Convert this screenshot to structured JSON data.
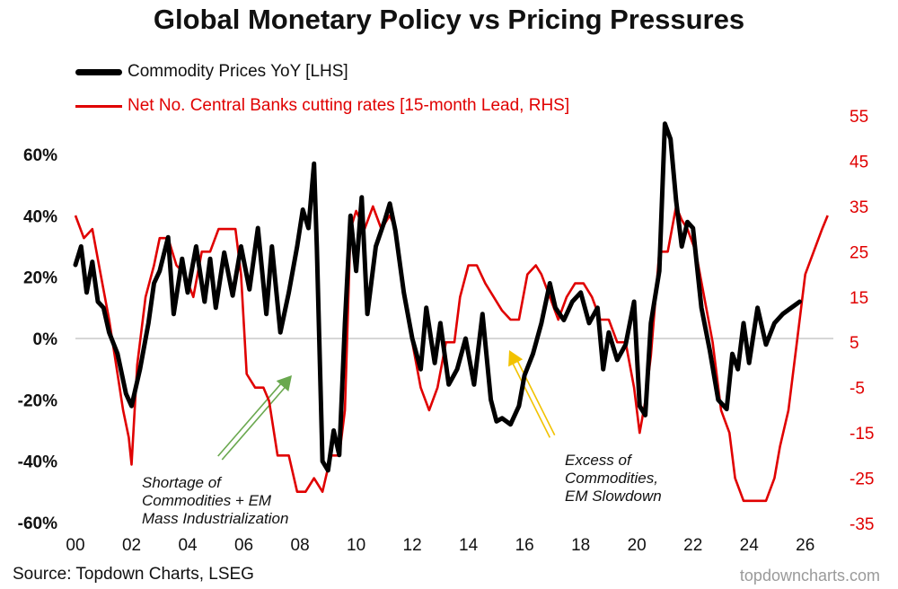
{
  "title": "Global Monetary Policy vs Pricing Pressures",
  "legend": {
    "black_label": "Commodity Prices YoY [LHS]",
    "red_label": "Net No. Central Banks cutting rates [15-month Lead, RHS]"
  },
  "source": "Source: Topdown Charts, LSEG",
  "watermark": "topdowncharts.com",
  "annotations": {
    "left_lines": [
      "Shortage of",
      "Commodities + EM",
      "Mass Industrialization"
    ],
    "right_lines": [
      "Excess of",
      "Commodities,",
      "EM Slowdown"
    ]
  },
  "colors": {
    "commodity": "#000000",
    "central_banks": "#e00000",
    "arrow_green": "#6aa84f",
    "arrow_yellow": "#f2c200",
    "zero_line": "#c8c8c8"
  },
  "chart_data": {
    "type": "line",
    "title": "Global Monetary Policy vs Pricing Pressures",
    "x_ticks": [
      "00",
      "02",
      "04",
      "06",
      "08",
      "10",
      "12",
      "14",
      "16",
      "18",
      "20",
      "22",
      "24",
      "26"
    ],
    "xlim": [
      2000,
      2027
    ],
    "y_left": {
      "ticks": [
        "60%",
        "40%",
        "20%",
        "0%",
        "-20%",
        "-40%",
        "-60%"
      ],
      "lim": [
        -60,
        60
      ]
    },
    "y_right": {
      "ticks": [
        "55",
        "45",
        "35",
        "25",
        "15",
        "5",
        "-5",
        "-15",
        "-25",
        "-35"
      ],
      "lim": [
        -35,
        55
      ]
    },
    "legend_position": "top-left",
    "series": [
      {
        "name": "Commodity Prices YoY [LHS]",
        "axis": "left",
        "x": [
          2000.0,
          2000.2,
          2000.4,
          2000.6,
          2000.8,
          2001.0,
          2001.2,
          2001.5,
          2001.8,
          2002.0,
          2002.3,
          2002.6,
          2002.8,
          2003.0,
          2003.3,
          2003.5,
          2003.8,
          2004.0,
          2004.3,
          2004.6,
          2004.8,
          2005.0,
          2005.3,
          2005.6,
          2005.9,
          2006.2,
          2006.5,
          2006.8,
          2007.0,
          2007.3,
          2007.6,
          2007.9,
          2008.1,
          2008.3,
          2008.5,
          2008.6,
          2008.8,
          2009.0,
          2009.2,
          2009.4,
          2009.6,
          2009.8,
          2010.0,
          2010.2,
          2010.4,
          2010.7,
          2011.0,
          2011.2,
          2011.4,
          2011.7,
          2012.0,
          2012.3,
          2012.5,
          2012.8,
          2013.0,
          2013.3,
          2013.6,
          2013.9,
          2014.2,
          2014.5,
          2014.8,
          2015.0,
          2015.2,
          2015.5,
          2015.8,
          2016.0,
          2016.3,
          2016.6,
          2016.9,
          2017.1,
          2017.4,
          2017.7,
          2018.0,
          2018.3,
          2018.6,
          2018.8,
          2019.0,
          2019.3,
          2019.6,
          2019.9,
          2020.1,
          2020.3,
          2020.5,
          2020.8,
          2021.0,
          2021.2,
          2021.4,
          2021.6,
          2021.8,
          2022.0,
          2022.3,
          2022.6,
          2022.9,
          2023.2,
          2023.4,
          2023.6,
          2023.8,
          2024.0,
          2024.3,
          2024.6,
          2024.9,
          2025.2,
          2025.5,
          2025.8
        ],
        "y": [
          24,
          30,
          15,
          25,
          12,
          10,
          2,
          -5,
          -18,
          -22,
          -10,
          5,
          18,
          22,
          33,
          8,
          26,
          15,
          30,
          12,
          26,
          10,
          28,
          14,
          30,
          16,
          36,
          8,
          30,
          2,
          15,
          30,
          42,
          36,
          57,
          30,
          -40,
          -43,
          -30,
          -38,
          5,
          40,
          22,
          46,
          8,
          30,
          38,
          44,
          35,
          15,
          0,
          -10,
          10,
          -8,
          5,
          -15,
          -10,
          0,
          -15,
          8,
          -20,
          -27,
          -26,
          -28,
          -22,
          -12,
          -5,
          5,
          18,
          10,
          6,
          12,
          15,
          5,
          10,
          -10,
          2,
          -7,
          -2,
          12,
          -22,
          -25,
          5,
          22,
          70,
          65,
          45,
          30,
          38,
          36,
          10,
          -4,
          -20,
          -23,
          -5,
          -10,
          5,
          -8,
          10,
          -2,
          5,
          8,
          10,
          12
        ]
      },
      {
        "name": "Net No. Central Banks cutting rates [15-month Lead, RHS]",
        "axis": "right",
        "x": [
          2000.0,
          2000.3,
          2000.6,
          2000.9,
          2001.2,
          2001.5,
          2001.7,
          2001.9,
          2002.0,
          2002.2,
          2002.5,
          2002.8,
          2003.0,
          2003.3,
          2003.6,
          2003.9,
          2004.2,
          2004.5,
          2004.8,
          2005.1,
          2005.4,
          2005.7,
          2005.9,
          2006.1,
          2006.4,
          2006.7,
          2006.9,
          2007.2,
          2007.6,
          2007.9,
          2008.2,
          2008.5,
          2008.8,
          2009.1,
          2009.4,
          2009.6,
          2009.8,
          2010.0,
          2010.3,
          2010.6,
          2010.9,
          2011.2,
          2011.4,
          2011.7,
          2012.0,
          2012.3,
          2012.6,
          2012.9,
          2013.2,
          2013.5,
          2013.7,
          2014.0,
          2014.3,
          2014.6,
          2014.9,
          2015.2,
          2015.5,
          2015.8,
          2016.1,
          2016.4,
          2016.6,
          2016.9,
          2017.2,
          2017.5,
          2017.8,
          2018.1,
          2018.4,
          2018.7,
          2019.0,
          2019.3,
          2019.6,
          2019.9,
          2020.1,
          2020.3,
          2020.5,
          2020.8,
          2021.1,
          2021.4,
          2021.6,
          2021.8,
          2022.1,
          2022.4,
          2022.7,
          2023.0,
          2023.3,
          2023.5,
          2023.8,
          2024.2,
          2024.6,
          2024.9,
          2025.1,
          2025.4,
          2025.7,
          2026.0,
          2026.3,
          2026.6,
          2026.8
        ],
        "y": [
          33,
          28,
          30,
          20,
          10,
          -2,
          -10,
          -16,
          -22,
          0,
          15,
          22,
          28,
          28,
          22,
          20,
          15,
          25,
          25,
          30,
          30,
          30,
          20,
          -2,
          -5,
          -5,
          -8,
          -20,
          -20,
          -28,
          -28,
          -25,
          -28,
          -20,
          -20,
          -10,
          30,
          34,
          30,
          35,
          30,
          33,
          30,
          15,
          5,
          -5,
          -10,
          -5,
          5,
          5,
          15,
          22,
          22,
          18,
          15,
          12,
          10,
          10,
          20,
          22,
          20,
          15,
          10,
          15,
          18,
          18,
          15,
          10,
          10,
          5,
          5,
          -5,
          -15,
          -8,
          2,
          25,
          25,
          35,
          32,
          30,
          25,
          15,
          5,
          -10,
          -15,
          -25,
          -30,
          -30,
          -30,
          -25,
          -18,
          -10,
          5,
          20,
          25,
          30,
          33
        ]
      }
    ]
  }
}
